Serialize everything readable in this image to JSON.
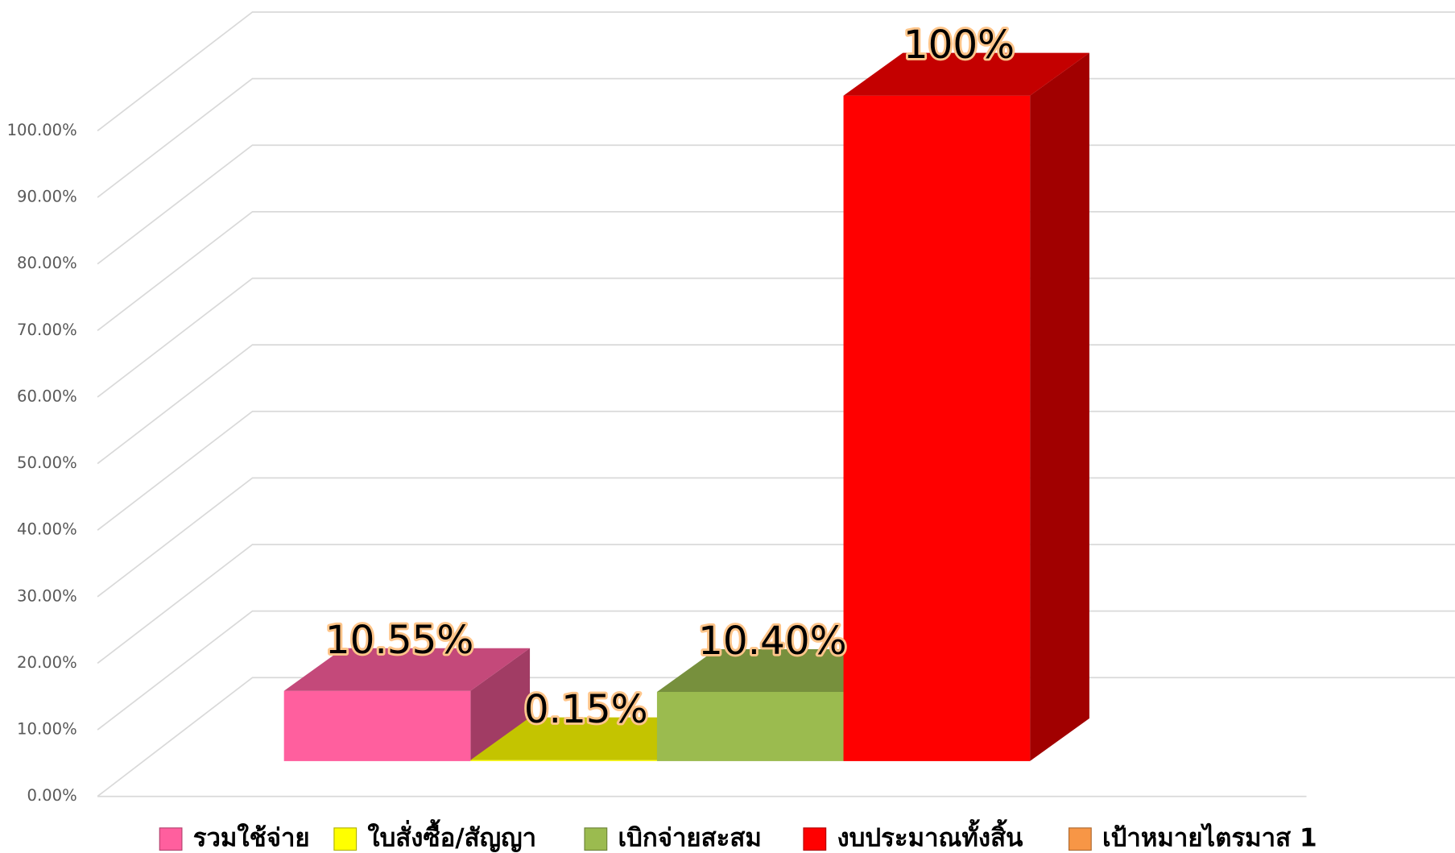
{
  "chart_data": {
    "type": "bar",
    "series": [
      {
        "name": "รวมใช้จ่าย",
        "color": "#ff5f9e",
        "values": [
          10.55
        ],
        "value_labels": [
          "10.55%"
        ]
      },
      {
        "name": "ใบสั่งซื้อ/สัญญา",
        "color": "#ffff00",
        "values": [
          0.15
        ],
        "value_labels": [
          "0.15%"
        ]
      },
      {
        "name": "เบิกจ่ายสะสม",
        "color": "#9bbb4f",
        "values": [
          10.4
        ],
        "value_labels": [
          "10.40%"
        ]
      },
      {
        "name": "งบประมาณทั้งสิ้น",
        "color": "#ff0000",
        "values": [
          100
        ],
        "value_labels": [
          "100%"
        ]
      },
      {
        "name": "เป้าหมายไตรมาส 1",
        "color": "#f79646",
        "values": [
          null
        ]
      }
    ],
    "ylim": [
      0,
      100
    ],
    "yticks": [
      {
        "value": 0,
        "label": "0.00%"
      },
      {
        "value": 10,
        "label": "10.00%"
      },
      {
        "value": 20,
        "label": "20.00%"
      },
      {
        "value": 30,
        "label": "30.00%"
      },
      {
        "value": 40,
        "label": "40.00%"
      },
      {
        "value": 50,
        "label": "50.00%"
      },
      {
        "value": 60,
        "label": "60.00%"
      },
      {
        "value": 70,
        "label": "70.00%"
      },
      {
        "value": 80,
        "label": "80.00%"
      },
      {
        "value": 90,
        "label": "90.00%"
      },
      {
        "value": 100,
        "label": "100.00%"
      }
    ],
    "grid": true
  }
}
